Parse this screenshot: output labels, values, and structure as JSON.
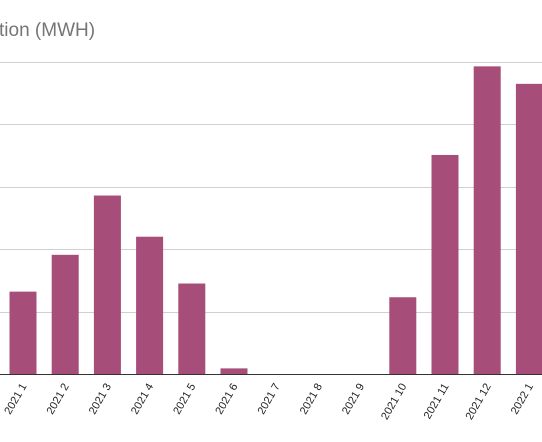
{
  "colors": {
    "bar": "#a64d79",
    "grid": "#d0d0d0",
    "title": "#757575"
  },
  "chart_data": {
    "type": "bar",
    "title": "tion (MWH)",
    "xlabel": "",
    "ylabel": "",
    "categories": [
      "2021 1",
      "2021 2",
      "2021 3",
      "2021 4",
      "2021 5",
      "2021 6",
      "2021 7",
      "2021 8",
      "2021 9",
      "2021 10",
      "2021 11",
      "2021 12",
      "2022 1"
    ],
    "values": [
      13.2,
      19.1,
      28.6,
      22.0,
      14.5,
      0.9,
      0,
      0,
      0,
      12.3,
      35.1,
      49.3,
      46.5
    ],
    "ylim": [
      0,
      50
    ],
    "grid": true,
    "legend": "none"
  }
}
